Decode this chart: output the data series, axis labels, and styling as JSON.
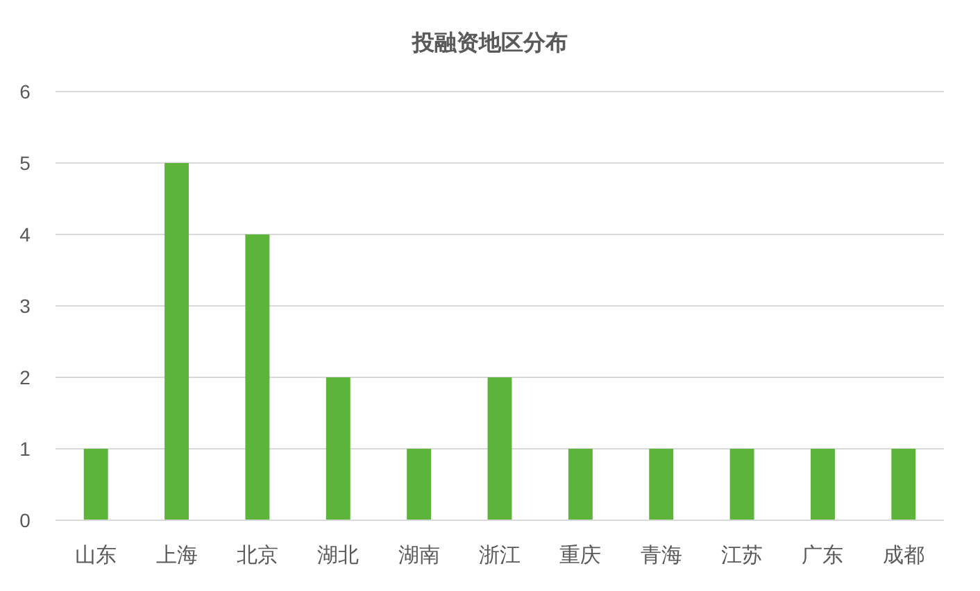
{
  "chart_data": {
    "type": "bar",
    "title": "投融资地区分布",
    "categories": [
      "山东",
      "上海",
      "北京",
      "湖北",
      "湖南",
      "浙江",
      "重庆",
      "青海",
      "江苏",
      "广东",
      "成都"
    ],
    "values": [
      1,
      5,
      4,
      2,
      1,
      2,
      1,
      1,
      1,
      1,
      1
    ],
    "color": "#5db43b",
    "ylim": [
      0,
      6
    ],
    "yticks": [
      0,
      1,
      2,
      3,
      4,
      5,
      6
    ],
    "grid": "y"
  }
}
